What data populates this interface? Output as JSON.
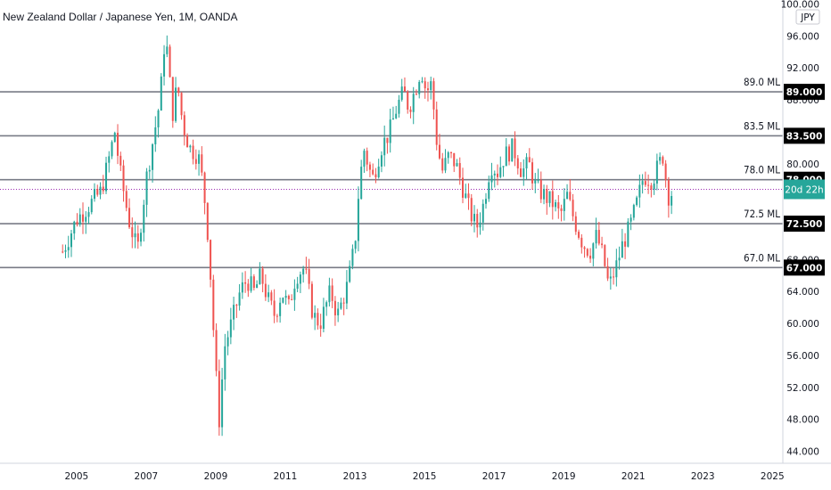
{
  "chart_data": {
    "type": "candlestick",
    "title": "New Zealand Dollar / Japanese Yen, 1M, OANDA",
    "currency": "JPY",
    "ylim": [
      42.5,
      100.5
    ],
    "y_ticks": [
      "44.000",
      "48.000",
      "52.000",
      "56.000",
      "60.000",
      "64.000",
      "68.000",
      "72.000",
      "76.000",
      "80.000",
      "84.000",
      "88.000",
      "92.000",
      "96.000",
      "100.000"
    ],
    "xlim": [
      2002.8,
      2025.3
    ],
    "x_ticks": [
      "2005",
      "2007",
      "2009",
      "2011",
      "2013",
      "2015",
      "2017",
      "2019",
      "2021",
      "2023",
      "2025"
    ],
    "x_tick_values": [
      2005,
      2007,
      2009,
      2011,
      2013,
      2015,
      2017,
      2019,
      2021,
      2023,
      2025
    ],
    "levels": [
      {
        "label": "89.0 ML",
        "badge": "89.000",
        "value": 89.0
      },
      {
        "label": "83.5 ML",
        "badge": "83.500",
        "value": 83.5
      },
      {
        "label": "78.0 ML",
        "badge": "78.000",
        "value": 78.0
      },
      {
        "label": "72.5 ML",
        "badge": "72.500",
        "value": 72.5
      },
      {
        "label": "67.0 ML",
        "badge": "67.000",
        "value": 67.0
      }
    ],
    "countdown": {
      "text": "20d 22h",
      "value": 76.8
    },
    "current_price": 76.8,
    "colors": {
      "up": "#26a69a",
      "down": "#ef5350",
      "level": "#787b86",
      "badge": "#000000",
      "countdown": "#26a69a",
      "price_line": "#9c27b0"
    },
    "price_path": [
      [
        2004.6,
        69.0
      ],
      [
        2005.0,
        73.0
      ],
      [
        2005.3,
        74.5
      ],
      [
        2005.7,
        76.5
      ],
      [
        2005.9,
        80.0
      ],
      [
        2006.1,
        84.0
      ],
      [
        2006.25,
        79.0
      ],
      [
        2006.5,
        73.0
      ],
      [
        2006.75,
        69.0
      ],
      [
        2007.0,
        78.0
      ],
      [
        2007.2,
        83.0
      ],
      [
        2007.4,
        88.0
      ],
      [
        2007.55,
        96.5
      ],
      [
        2007.65,
        92.0
      ],
      [
        2007.75,
        86.0
      ],
      [
        2007.9,
        90.0
      ],
      [
        2008.05,
        85.0
      ],
      [
        2008.25,
        82.0
      ],
      [
        2008.5,
        81.0
      ],
      [
        2008.65,
        77.0
      ],
      [
        2008.8,
        70.0
      ],
      [
        2008.9,
        62.0
      ],
      [
        2009.0,
        54.0
      ],
      [
        2009.1,
        48.0
      ],
      [
        2009.25,
        57.0
      ],
      [
        2009.45,
        60.0
      ],
      [
        2009.7,
        64.0
      ],
      [
        2009.9,
        65.5
      ],
      [
        2010.1,
        64.0
      ],
      [
        2010.3,
        66.0
      ],
      [
        2010.5,
        63.0
      ],
      [
        2010.7,
        61.0
      ],
      [
        2010.9,
        64.0
      ],
      [
        2011.1,
        62.0
      ],
      [
        2011.3,
        66.0
      ],
      [
        2011.55,
        67.0
      ],
      [
        2011.8,
        61.0
      ],
      [
        2012.0,
        60.0
      ],
      [
        2012.3,
        64.0
      ],
      [
        2012.5,
        61.0
      ],
      [
        2012.8,
        65.0
      ],
      [
        2013.0,
        70.0
      ],
      [
        2013.1,
        76.0
      ],
      [
        2013.25,
        82.0
      ],
      [
        2013.5,
        78.0
      ],
      [
        2013.75,
        82.0
      ],
      [
        2014.0,
        84.0
      ],
      [
        2014.2,
        87.0
      ],
      [
        2014.4,
        89.0
      ],
      [
        2014.55,
        87.0
      ],
      [
        2014.75,
        89.5
      ],
      [
        2014.9,
        92.0
      ],
      [
        2015.05,
        89.0
      ],
      [
        2015.2,
        90.0
      ],
      [
        2015.35,
        83.0
      ],
      [
        2015.5,
        79.0
      ],
      [
        2015.7,
        81.0
      ],
      [
        2015.9,
        80.0
      ],
      [
        2016.1,
        77.0
      ],
      [
        2016.3,
        74.0
      ],
      [
        2016.5,
        72.0
      ],
      [
        2016.7,
        75.0
      ],
      [
        2016.9,
        80.0
      ],
      [
        2017.1,
        79.0
      ],
      [
        2017.3,
        81.0
      ],
      [
        2017.55,
        82.0
      ],
      [
        2017.8,
        79.0
      ],
      [
        2018.0,
        80.0
      ],
      [
        2018.2,
        77.0
      ],
      [
        2018.45,
        76.0
      ],
      [
        2018.7,
        75.0
      ],
      [
        2018.9,
        73.5
      ],
      [
        2019.1,
        76.0
      ],
      [
        2019.3,
        73.0
      ],
      [
        2019.55,
        70.0
      ],
      [
        2019.75,
        69.0
      ],
      [
        2019.95,
        71.0
      ],
      [
        2020.15,
        68.0
      ],
      [
        2020.3,
        64.5
      ],
      [
        2020.5,
        67.0
      ],
      [
        2020.7,
        70.0
      ],
      [
        2020.9,
        72.0
      ],
      [
        2021.1,
        75.0
      ],
      [
        2021.3,
        78.5
      ],
      [
        2021.55,
        78.0
      ],
      [
        2021.75,
        80.0
      ],
      [
        2021.85,
        81.0
      ],
      [
        2022.0,
        76.0
      ],
      [
        2022.15,
        76.5
      ]
    ]
  }
}
